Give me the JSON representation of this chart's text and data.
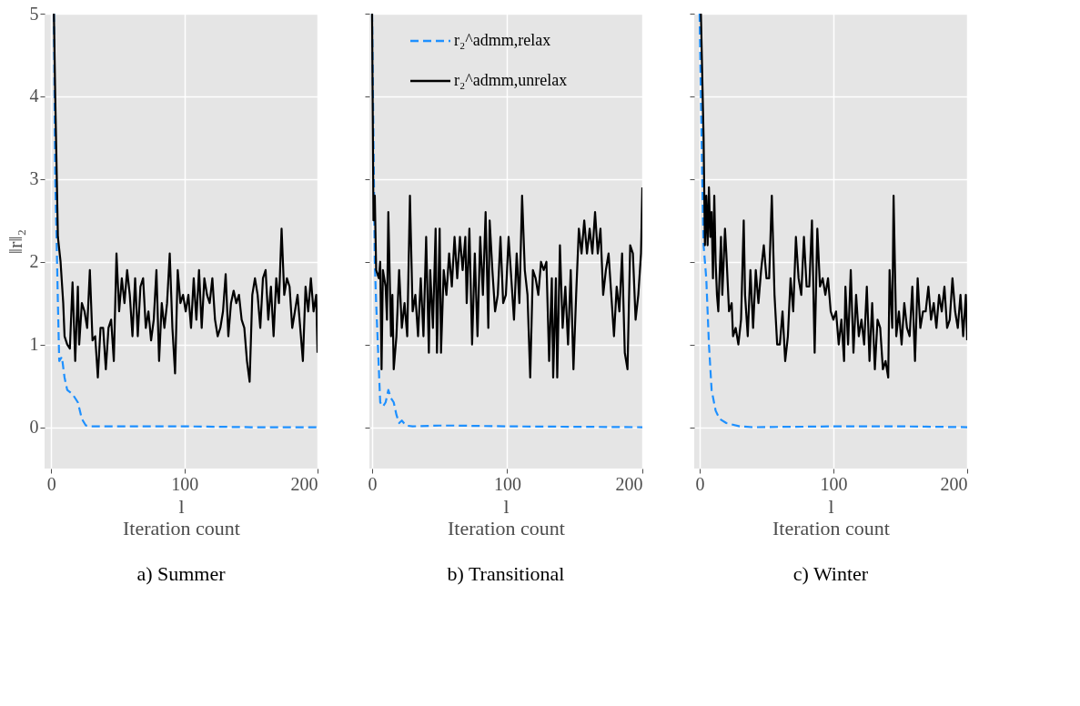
{
  "chart_data": [
    {
      "type": "line",
      "title": "a) Summer",
      "xlabel": "l\nIteration count",
      "ylabel": "‖r‖₂",
      "xlim": [
        -5,
        200
      ],
      "xticks": [
        0,
        100,
        200
      ],
      "ylim": [
        -0.5,
        5
      ],
      "yticks": [
        0,
        1,
        2,
        3,
        4,
        5
      ],
      "grid": true,
      "legend": false,
      "series": [
        {
          "color": "#1e90ff",
          "line_style": "dashed",
          "x": [
            2,
            3,
            4,
            5,
            6,
            8,
            10,
            12,
            16,
            20,
            23,
            26,
            30,
            50,
            100,
            150,
            200
          ],
          "values": [
            5,
            3.0,
            2.3,
            1.5,
            0.8,
            0.85,
            0.6,
            0.45,
            0.4,
            0.3,
            0.1,
            0.02,
            0.01,
            0.01,
            0.01,
            0.0,
            0.0
          ]
        },
        {
          "color": "#000000",
          "line_style": "solid",
          "x": [
            2,
            3,
            5,
            7,
            9,
            10,
            12,
            14,
            16,
            18,
            20,
            21,
            23,
            25,
            27,
            29,
            31,
            33,
            35,
            37,
            39,
            41,
            43,
            45,
            47,
            49,
            51,
            53,
            55,
            57,
            59,
            61,
            63,
            65,
            67,
            69,
            71,
            73,
            75,
            77,
            79,
            81,
            83,
            85,
            87,
            89,
            91,
            93,
            95,
            97,
            99,
            101,
            103,
            105,
            107,
            109,
            111,
            113,
            115,
            117,
            119,
            121,
            123,
            125,
            127,
            129,
            131,
            133,
            135,
            137,
            139,
            141,
            143,
            145,
            147,
            149,
            151,
            153,
            155,
            157,
            159,
            161,
            163,
            165,
            167,
            169,
            171,
            173,
            175,
            177,
            179,
            181,
            183,
            185,
            187,
            189,
            191,
            193,
            195,
            197,
            199,
            200
          ],
          "values": [
            5,
            4.0,
            2.3,
            2.0,
            1.5,
            1.1,
            1.0,
            0.95,
            1.75,
            0.8,
            1.7,
            1.0,
            1.5,
            1.4,
            1.2,
            1.9,
            1.05,
            1.1,
            0.6,
            1.2,
            1.2,
            0.7,
            1.2,
            1.3,
            0.8,
            2.1,
            1.4,
            1.8,
            1.5,
            1.9,
            1.6,
            1.1,
            1.8,
            1.1,
            1.7,
            1.8,
            1.2,
            1.4,
            1.05,
            1.3,
            1.9,
            0.8,
            1.5,
            1.2,
            1.5,
            2.1,
            1.2,
            0.65,
            1.9,
            1.5,
            1.6,
            1.4,
            1.6,
            1.2,
            1.8,
            1.3,
            1.9,
            1.2,
            1.8,
            1.6,
            1.5,
            1.8,
            1.3,
            1.1,
            1.2,
            1.4,
            1.85,
            1.1,
            1.5,
            1.65,
            1.5,
            1.6,
            1.3,
            1.2,
            0.8,
            0.55,
            1.6,
            1.8,
            1.6,
            1.2,
            1.8,
            1.9,
            1.3,
            1.7,
            1.1,
            1.8,
            1.5,
            2.4,
            1.6,
            1.8,
            1.7,
            1.2,
            1.4,
            1.6,
            1.2,
            0.8,
            1.7,
            1.4,
            1.8,
            1.4,
            1.6,
            0.9
          ]
        }
      ]
    },
    {
      "type": "line",
      "title": "b) Transitional",
      "xlabel": "l\nIteration count",
      "xlim": [
        -2,
        200
      ],
      "xticks": [
        0,
        100,
        200
      ],
      "ylim": [
        -0.5,
        5
      ],
      "yticks": [
        0,
        1,
        2,
        3,
        4,
        5
      ],
      "grid": true,
      "legend": "top",
      "tick_labels": "x",
      "series": [
        {
          "name": "r₂^admm,relax",
          "color": "#1e90ff",
          "line_style": "dashed",
          "x": [
            0,
            1,
            2,
            3,
            4,
            5,
            6,
            8,
            10,
            12,
            14,
            16,
            18,
            20,
            22,
            25,
            30,
            50,
            60,
            100,
            200
          ],
          "values": [
            5,
            3.5,
            2.0,
            1.5,
            1.1,
            0.7,
            0.3,
            0.25,
            0.3,
            0.45,
            0.35,
            0.3,
            0.15,
            0.05,
            0.08,
            0.02,
            0.01,
            0.02,
            0.02,
            0.01,
            0.0
          ]
        },
        {
          "name": "r₂^admm,unrelax",
          "color": "#000000",
          "line_style": "solid",
          "x": [
            0,
            1,
            2,
            3,
            5,
            6,
            7,
            8,
            10,
            11,
            12,
            14,
            15,
            16,
            18,
            20,
            22,
            24,
            26,
            28,
            30,
            32,
            34,
            36,
            38,
            40,
            42,
            43,
            45,
            47,
            48,
            50,
            51,
            53,
            55,
            57,
            59,
            61,
            63,
            65,
            67,
            69,
            70,
            72,
            74,
            76,
            78,
            80,
            82,
            84,
            86,
            87,
            89,
            91,
            93,
            95,
            97,
            99,
            101,
            103,
            105,
            107,
            109,
            111,
            113,
            115,
            117,
            119,
            121,
            123,
            125,
            127,
            129,
            131,
            133,
            134,
            136,
            137,
            139,
            141,
            143,
            145,
            147,
            149,
            151,
            153,
            155,
            157,
            159,
            161,
            163,
            165,
            167,
            169,
            171,
            173,
            175,
            177,
            179,
            181,
            183,
            185,
            187,
            189,
            191,
            193,
            195,
            197,
            199,
            200
          ],
          "values": [
            5,
            2.5,
            2.8,
            1.9,
            1.8,
            2.0,
            0.7,
            1.9,
            1.7,
            1.3,
            2.6,
            1.1,
            1.6,
            0.7,
            1.1,
            1.9,
            1.2,
            1.5,
            1.1,
            2.8,
            1.4,
            1.6,
            1.1,
            1.8,
            1.1,
            2.3,
            0.9,
            1.9,
            1.2,
            2.4,
            0.9,
            2.4,
            0.9,
            1.9,
            1.6,
            2.1,
            1.7,
            2.3,
            1.8,
            2.3,
            1.9,
            2.3,
            1.5,
            2.4,
            1.0,
            2.1,
            1.1,
            2.3,
            1.6,
            2.6,
            1.2,
            2.5,
            1.9,
            1.4,
            1.6,
            2.3,
            1.5,
            1.6,
            2.3,
            1.8,
            1.3,
            2.1,
            1.5,
            2.8,
            1.9,
            1.6,
            0.6,
            1.9,
            1.8,
            1.6,
            2.0,
            1.9,
            2.0,
            0.8,
            1.8,
            0.6,
            1.8,
            0.6,
            2.2,
            1.2,
            1.7,
            1.0,
            1.9,
            0.7,
            1.6,
            2.4,
            2.1,
            2.5,
            2.1,
            2.4,
            2.1,
            2.6,
            2.1,
            2.4,
            1.6,
            1.9,
            2.1,
            1.6,
            1.1,
            1.7,
            1.4,
            2.1,
            0.9,
            0.7,
            2.2,
            2.1,
            1.3,
            1.6,
            2.1,
            2.9
          ]
        }
      ]
    },
    {
      "type": "line",
      "title": "c) Winter",
      "xlabel": "l\nIteration count",
      "xlim": [
        -4,
        200
      ],
      "xticks": [
        0,
        100,
        200
      ],
      "ylim": [
        -0.5,
        5
      ],
      "yticks": [
        0,
        1,
        2,
        3,
        4,
        5
      ],
      "grid": true,
      "legend": false,
      "tick_labels": "x",
      "series": [
        {
          "color": "#1e90ff",
          "line_style": "dashed",
          "x": [
            0,
            1,
            2,
            3,
            5,
            7,
            9,
            12,
            15,
            20,
            30,
            40,
            100,
            150,
            200
          ],
          "values": [
            5,
            4.0,
            3.0,
            2.2,
            1.8,
            1.0,
            0.45,
            0.2,
            0.1,
            0.05,
            0.01,
            0.0,
            0.01,
            0.01,
            0.0
          ]
        },
        {
          "color": "#000000",
          "line_style": "solid",
          "x": [
            1,
            3,
            4,
            5,
            6,
            7,
            8,
            9,
            10,
            11,
            12,
            13,
            14,
            16,
            17,
            19,
            20,
            22,
            24,
            25,
            27,
            29,
            31,
            33,
            34,
            36,
            38,
            40,
            42,
            44,
            46,
            48,
            50,
            52,
            54,
            56,
            58,
            60,
            62,
            64,
            66,
            68,
            70,
            72,
            74,
            76,
            78,
            80,
            82,
            84,
            86,
            88,
            90,
            92,
            94,
            96,
            98,
            100,
            102,
            104,
            106,
            108,
            109,
            111,
            113,
            115,
            117,
            119,
            121,
            123,
            125,
            127,
            129,
            131,
            133,
            135,
            137,
            139,
            141,
            142,
            144,
            145,
            147,
            149,
            151,
            153,
            155,
            157,
            159,
            161,
            163,
            165,
            167,
            169,
            171,
            173,
            175,
            177,
            179,
            181,
            183,
            185,
            187,
            189,
            191,
            193,
            195,
            197,
            199,
            200
          ],
          "values": [
            5,
            3.5,
            2.2,
            2.8,
            2.2,
            2.9,
            2.3,
            2.6,
            1.8,
            2.8,
            2.0,
            1.6,
            1.4,
            2.3,
            1.6,
            2.4,
            2.1,
            1.4,
            1.5,
            1.1,
            1.2,
            1.0,
            1.3,
            2.5,
            1.6,
            1.1,
            1.9,
            1.2,
            1.9,
            1.5,
            1.9,
            2.2,
            1.8,
            1.8,
            2.8,
            1.6,
            1.0,
            1.0,
            1.4,
            0.8,
            1.1,
            1.8,
            1.4,
            2.3,
            1.8,
            1.6,
            2.3,
            1.7,
            1.7,
            2.5,
            0.9,
            2.4,
            1.7,
            1.8,
            1.6,
            1.8,
            1.4,
            1.3,
            1.4,
            1.0,
            1.3,
            0.8,
            1.7,
            1.0,
            1.9,
            0.9,
            1.6,
            1.1,
            1.3,
            1.0,
            1.7,
            0.8,
            1.5,
            0.7,
            1.3,
            1.2,
            0.7,
            0.8,
            0.6,
            1.9,
            1.2,
            2.8,
            1.1,
            1.4,
            1.0,
            1.5,
            1.2,
            1.1,
            1.7,
            0.8,
            1.8,
            1.2,
            1.4,
            1.4,
            1.7,
            1.3,
            1.5,
            1.2,
            1.6,
            1.4,
            1.7,
            1.2,
            1.3,
            1.8,
            1.4,
            1.2,
            1.6,
            1.1,
            1.6,
            1.05
          ]
        }
      ]
    }
  ]
}
